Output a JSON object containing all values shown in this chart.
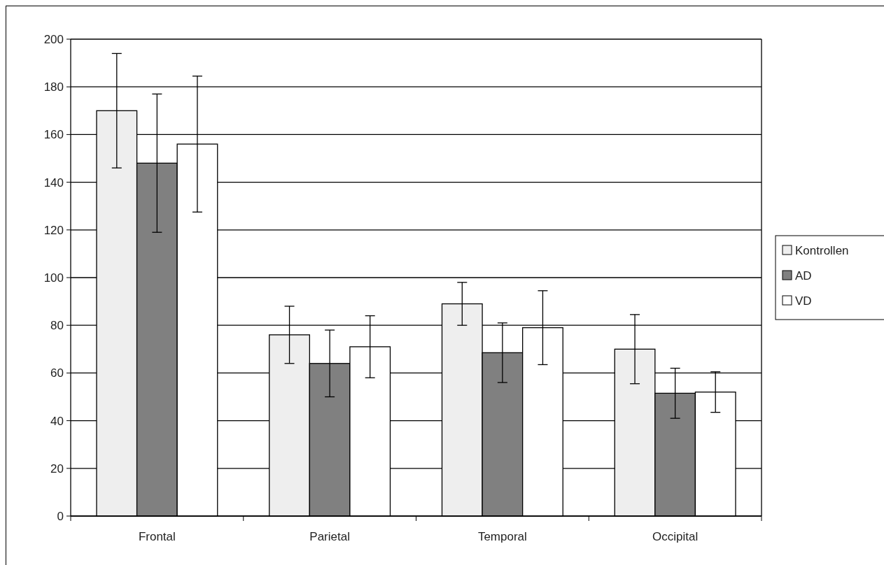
{
  "chart_data": {
    "type": "bar",
    "categories": [
      "Frontal",
      "Parietal",
      "Temporal",
      "Occipital"
    ],
    "series": [
      {
        "name": "Kontrollen",
        "color": "#eeeeee",
        "values": [
          170,
          76,
          89,
          70
        ],
        "errors": [
          24,
          12,
          9,
          14.5
        ]
      },
      {
        "name": "AD",
        "color": "#808080",
        "values": [
          148,
          64,
          68.5,
          51.5
        ],
        "errors": [
          29,
          14,
          12.5,
          10.5
        ]
      },
      {
        "name": "VD",
        "color": "#ffffff",
        "values": [
          156,
          71,
          79,
          52
        ],
        "errors": [
          28.5,
          13,
          15.5,
          8.5
        ]
      }
    ],
    "ylim": [
      0,
      200
    ],
    "yticks": [
      0,
      20,
      40,
      60,
      80,
      100,
      120,
      140,
      160,
      180,
      200
    ],
    "grid": "y",
    "legend": "right"
  }
}
